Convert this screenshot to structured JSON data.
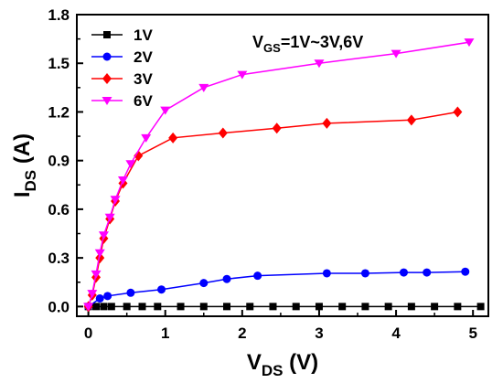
{
  "chart_data": {
    "type": "line",
    "x_label": {
      "main": "V",
      "sub": "DS",
      "unit": " (V)"
    },
    "y_label": {
      "main": "I",
      "sub": "DS",
      "unit": " (A)"
    },
    "annotation": {
      "main": "V",
      "sub": "GS",
      "rest": "=1V~3V,6V"
    },
    "xlim": [
      -0.15,
      5.2
    ],
    "ylim": [
      -0.06,
      1.8
    ],
    "x_ticks": [
      0,
      1,
      2,
      3,
      4,
      5
    ],
    "y_ticks": [
      0.0,
      0.3,
      0.6,
      0.9,
      1.2,
      1.5,
      1.8
    ],
    "x_tick_labels": [
      "0",
      "1",
      "2",
      "3",
      "4",
      "5"
    ],
    "y_tick_labels": [
      "0.0",
      "0.3",
      "0.6",
      "0.9",
      "1.2",
      "1.5",
      "1.8"
    ],
    "legend_position": "top-left",
    "series": [
      {
        "name": "1V",
        "color": "#000000",
        "marker": "square",
        "x": [
          0.0,
          0.1,
          0.2,
          0.3,
          0.5,
          0.7,
          0.9,
          1.2,
          1.5,
          1.8,
          2.1,
          2.4,
          2.7,
          3.0,
          3.3,
          3.6,
          3.9,
          4.2,
          4.5,
          4.8,
          5.1
        ],
        "y": [
          0.0,
          0.0,
          0.0,
          0.0,
          0.0,
          0.0,
          0.0,
          0.0,
          0.0,
          0.0,
          0.0,
          0.0,
          0.0,
          0.0,
          0.0,
          0.0,
          0.0,
          0.0,
          0.0,
          0.0,
          0.0
        ]
      },
      {
        "name": "2V",
        "color": "#0000ff",
        "marker": "circle",
        "x": [
          0.0,
          0.15,
          0.25,
          0.55,
          0.95,
          1.5,
          1.8,
          2.2,
          3.1,
          3.6,
          4.1,
          4.4,
          4.9
        ],
        "y": [
          0.0,
          0.05,
          0.065,
          0.085,
          0.105,
          0.145,
          0.17,
          0.19,
          0.205,
          0.205,
          0.21,
          0.21,
          0.215
        ]
      },
      {
        "name": "3V",
        "color": "#ff0000",
        "marker": "diamond",
        "x": [
          0.0,
          0.05,
          0.1,
          0.15,
          0.2,
          0.28,
          0.35,
          0.45,
          0.65,
          1.1,
          1.75,
          2.45,
          3.1,
          4.2,
          4.8
        ],
        "y": [
          0.0,
          0.07,
          0.18,
          0.3,
          0.42,
          0.54,
          0.65,
          0.76,
          0.93,
          1.04,
          1.07,
          1.1,
          1.13,
          1.15,
          1.2
        ]
      },
      {
        "name": "6V",
        "color": "#ff00ff",
        "marker": "triangle-down",
        "x": [
          0.0,
          0.05,
          0.1,
          0.15,
          0.2,
          0.28,
          0.35,
          0.45,
          0.55,
          0.75,
          1.0,
          1.5,
          2.0,
          3.0,
          4.0,
          4.95
        ],
        "y": [
          0.0,
          0.08,
          0.2,
          0.33,
          0.44,
          0.55,
          0.66,
          0.78,
          0.88,
          1.04,
          1.21,
          1.35,
          1.43,
          1.5,
          1.56,
          1.63
        ]
      }
    ]
  }
}
